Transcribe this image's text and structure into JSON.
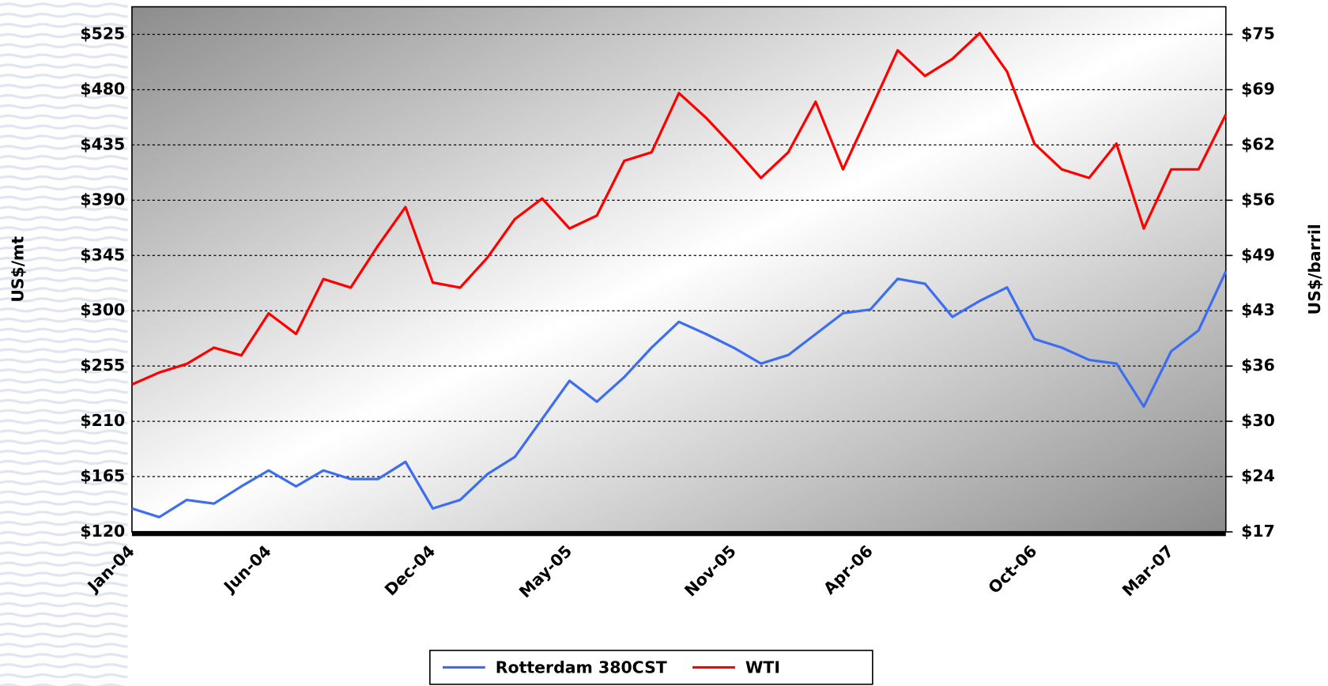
{
  "chart_data": {
    "type": "line",
    "y_label": "US$/mt",
    "y2_label": "US$/barril",
    "categories": [
      "Jan-04",
      null,
      null,
      null,
      null,
      "Jun-04",
      null,
      null,
      null,
      null,
      null,
      "Dec-04",
      null,
      null,
      null,
      null,
      "May-05",
      null,
      null,
      null,
      null,
      null,
      "Nov-05",
      null,
      null,
      null,
      null,
      "Apr-06",
      null,
      null,
      null,
      null,
      null,
      "Oct-06",
      null,
      null,
      null,
      null,
      "Mar-07",
      null,
      null
    ],
    "series": [
      {
        "name": "Rotterdam 380CST",
        "color": "#3d6ef0",
        "values": [
          139,
          132,
          146,
          143,
          157,
          170,
          157,
          170,
          163,
          163,
          177,
          139,
          146,
          167,
          181,
          212,
          243,
          226,
          246,
          270,
          291,
          281,
          270,
          257,
          264,
          281,
          298,
          301,
          326,
          322,
          295,
          308,
          319,
          277,
          270,
          260,
          257,
          222,
          267,
          284,
          332
        ]
      },
      {
        "name": "WTI",
        "color": "#ff0000",
        "axis": "y2",
        "values": [
          34.3,
          35.7,
          36.7,
          38.6,
          37.7,
          42.6,
          40.2,
          46.6,
          45.6,
          50.5,
          55,
          46.2,
          45.6,
          49.1,
          53.6,
          56,
          52.5,
          54,
          60.4,
          61.4,
          68.3,
          65.4,
          62,
          58.4,
          61.4,
          67.3,
          59.4,
          66.3,
          73.3,
          70.3,
          72.3,
          75.3,
          70.8,
          62.4,
          59.4,
          58.4,
          62.4,
          52.5,
          59.4,
          59.4,
          65.8
        ]
      }
    ],
    "ylim": [
      120,
      547.5
    ],
    "yticks": [
      {
        "value": 120,
        "label": "$120"
      },
      {
        "value": 165,
        "label": "$165"
      },
      {
        "value": 210,
        "label": "$210"
      },
      {
        "value": 255,
        "label": "$255"
      },
      {
        "value": 300,
        "label": "$300"
      },
      {
        "value": 345,
        "label": "$345"
      },
      {
        "value": 390,
        "label": "$390"
      },
      {
        "value": 435,
        "label": "$435"
      },
      {
        "value": 480,
        "label": "$480"
      },
      {
        "value": 525,
        "label": "$525"
      }
    ],
    "y2lim": [
      17.1,
      78.375
    ],
    "y2ticks": [
      {
        "value": 17.1,
        "label": "$17"
      },
      {
        "value": 23.55,
        "label": "$24"
      },
      {
        "value": 30,
        "label": "$30"
      },
      {
        "value": 36.45,
        "label": "$36"
      },
      {
        "value": 42.9,
        "label": "$43"
      },
      {
        "value": 49.35,
        "label": "$49"
      },
      {
        "value": 55.8,
        "label": "$56"
      },
      {
        "value": 62.25,
        "label": "$62"
      },
      {
        "value": 68.7,
        "label": "$69"
      },
      {
        "value": 75.15,
        "label": "$75"
      }
    ],
    "grid": true,
    "legend": "bottom"
  }
}
